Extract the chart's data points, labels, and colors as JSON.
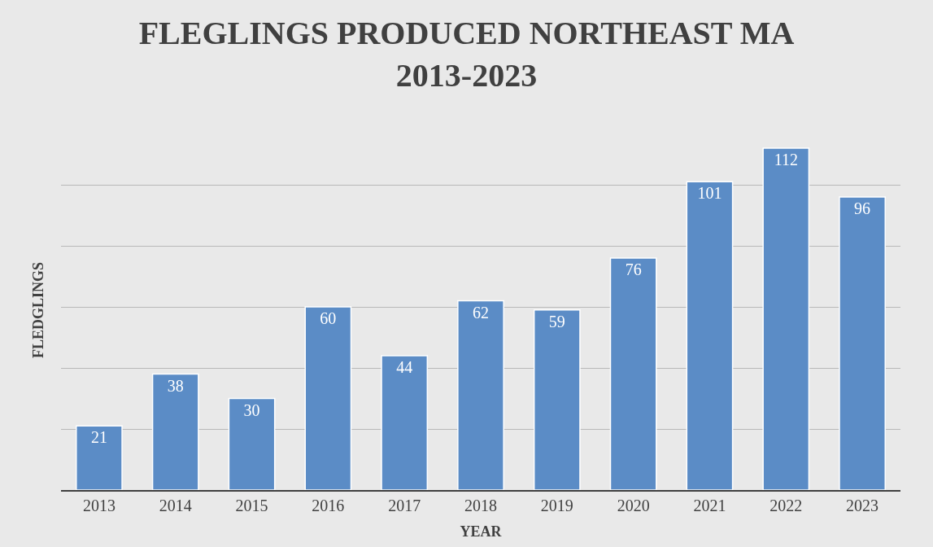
{
  "chart_data": {
    "type": "bar",
    "title": "FLEGLINGS PRODUCED NORTHEAST MA\n2013-2023",
    "xlabel": "YEAR",
    "ylabel": "FLEDGLINGS",
    "categories": [
      "2013",
      "2014",
      "2015",
      "2016",
      "2017",
      "2018",
      "2019",
      "2020",
      "2021",
      "2022",
      "2023"
    ],
    "values": [
      21,
      38,
      30,
      60,
      44,
      62,
      59,
      76,
      101,
      112,
      96
    ],
    "color": "#5b8cc6",
    "tick_labels": "x",
    "grid": "y",
    "legend": false,
    "data_labels": true
  }
}
